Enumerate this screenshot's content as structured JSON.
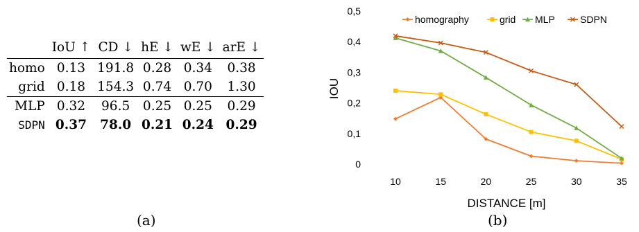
{
  "panel_a": {
    "caption": "(a)",
    "table": {
      "corner": "",
      "headers": [
        "IoU ↑",
        "CD ↓",
        "hE ↓",
        "wE ↓",
        "arE ↓"
      ],
      "rows": [
        {
          "name": "homo",
          "values": [
            "0.13",
            "191.8",
            "0.28",
            "0.34",
            "0.38"
          ]
        },
        {
          "name": "grid",
          "values": [
            "0.18",
            "154.3",
            "0.74",
            "0.70",
            "1.30"
          ]
        },
        {
          "name": "MLP",
          "values": [
            "0.32",
            "96.5",
            "0.25",
            "0.25",
            "0.29"
          ]
        },
        {
          "name": "SDPN",
          "values": [
            "0.37",
            "78.0",
            "0.21",
            "0.24",
            "0.29"
          ]
        }
      ]
    }
  },
  "panel_b": {
    "caption": "(b)"
  },
  "chart_data": {
    "type": "line",
    "title": "",
    "xlabel": "DISTANCE [m]",
    "ylabel": "IOU",
    "x": [
      10,
      15,
      20,
      25,
      30,
      35
    ],
    "x_tick_labels": [
      "10",
      "15",
      "20",
      "25",
      "30",
      "35"
    ],
    "ylim": [
      0,
      0.5
    ],
    "y_ticks": [
      0,
      0.1,
      0.2,
      0.3,
      0.4,
      0.5
    ],
    "y_tick_labels": [
      "0",
      "0,1",
      "0,2",
      "0,3",
      "0,4",
      "0,5"
    ],
    "grid": false,
    "legend_position": "top",
    "series": [
      {
        "name": "homography",
        "color": "#ED7D31",
        "marker": "diamond",
        "values": [
          0.148,
          0.218,
          0.082,
          0.026,
          0.011,
          0.003
        ]
      },
      {
        "name": "grid",
        "color": "#FFC000",
        "marker": "square",
        "values": [
          0.24,
          0.228,
          0.163,
          0.105,
          0.076,
          0.016
        ]
      },
      {
        "name": "MLP",
        "color": "#70AD47",
        "marker": "triangle",
        "values": [
          0.412,
          0.37,
          0.283,
          0.193,
          0.118,
          0.019
        ]
      },
      {
        "name": "SDPN",
        "color": "#C55A11",
        "marker": "cross",
        "values": [
          0.419,
          0.396,
          0.365,
          0.305,
          0.26,
          0.123
        ]
      }
    ]
  }
}
